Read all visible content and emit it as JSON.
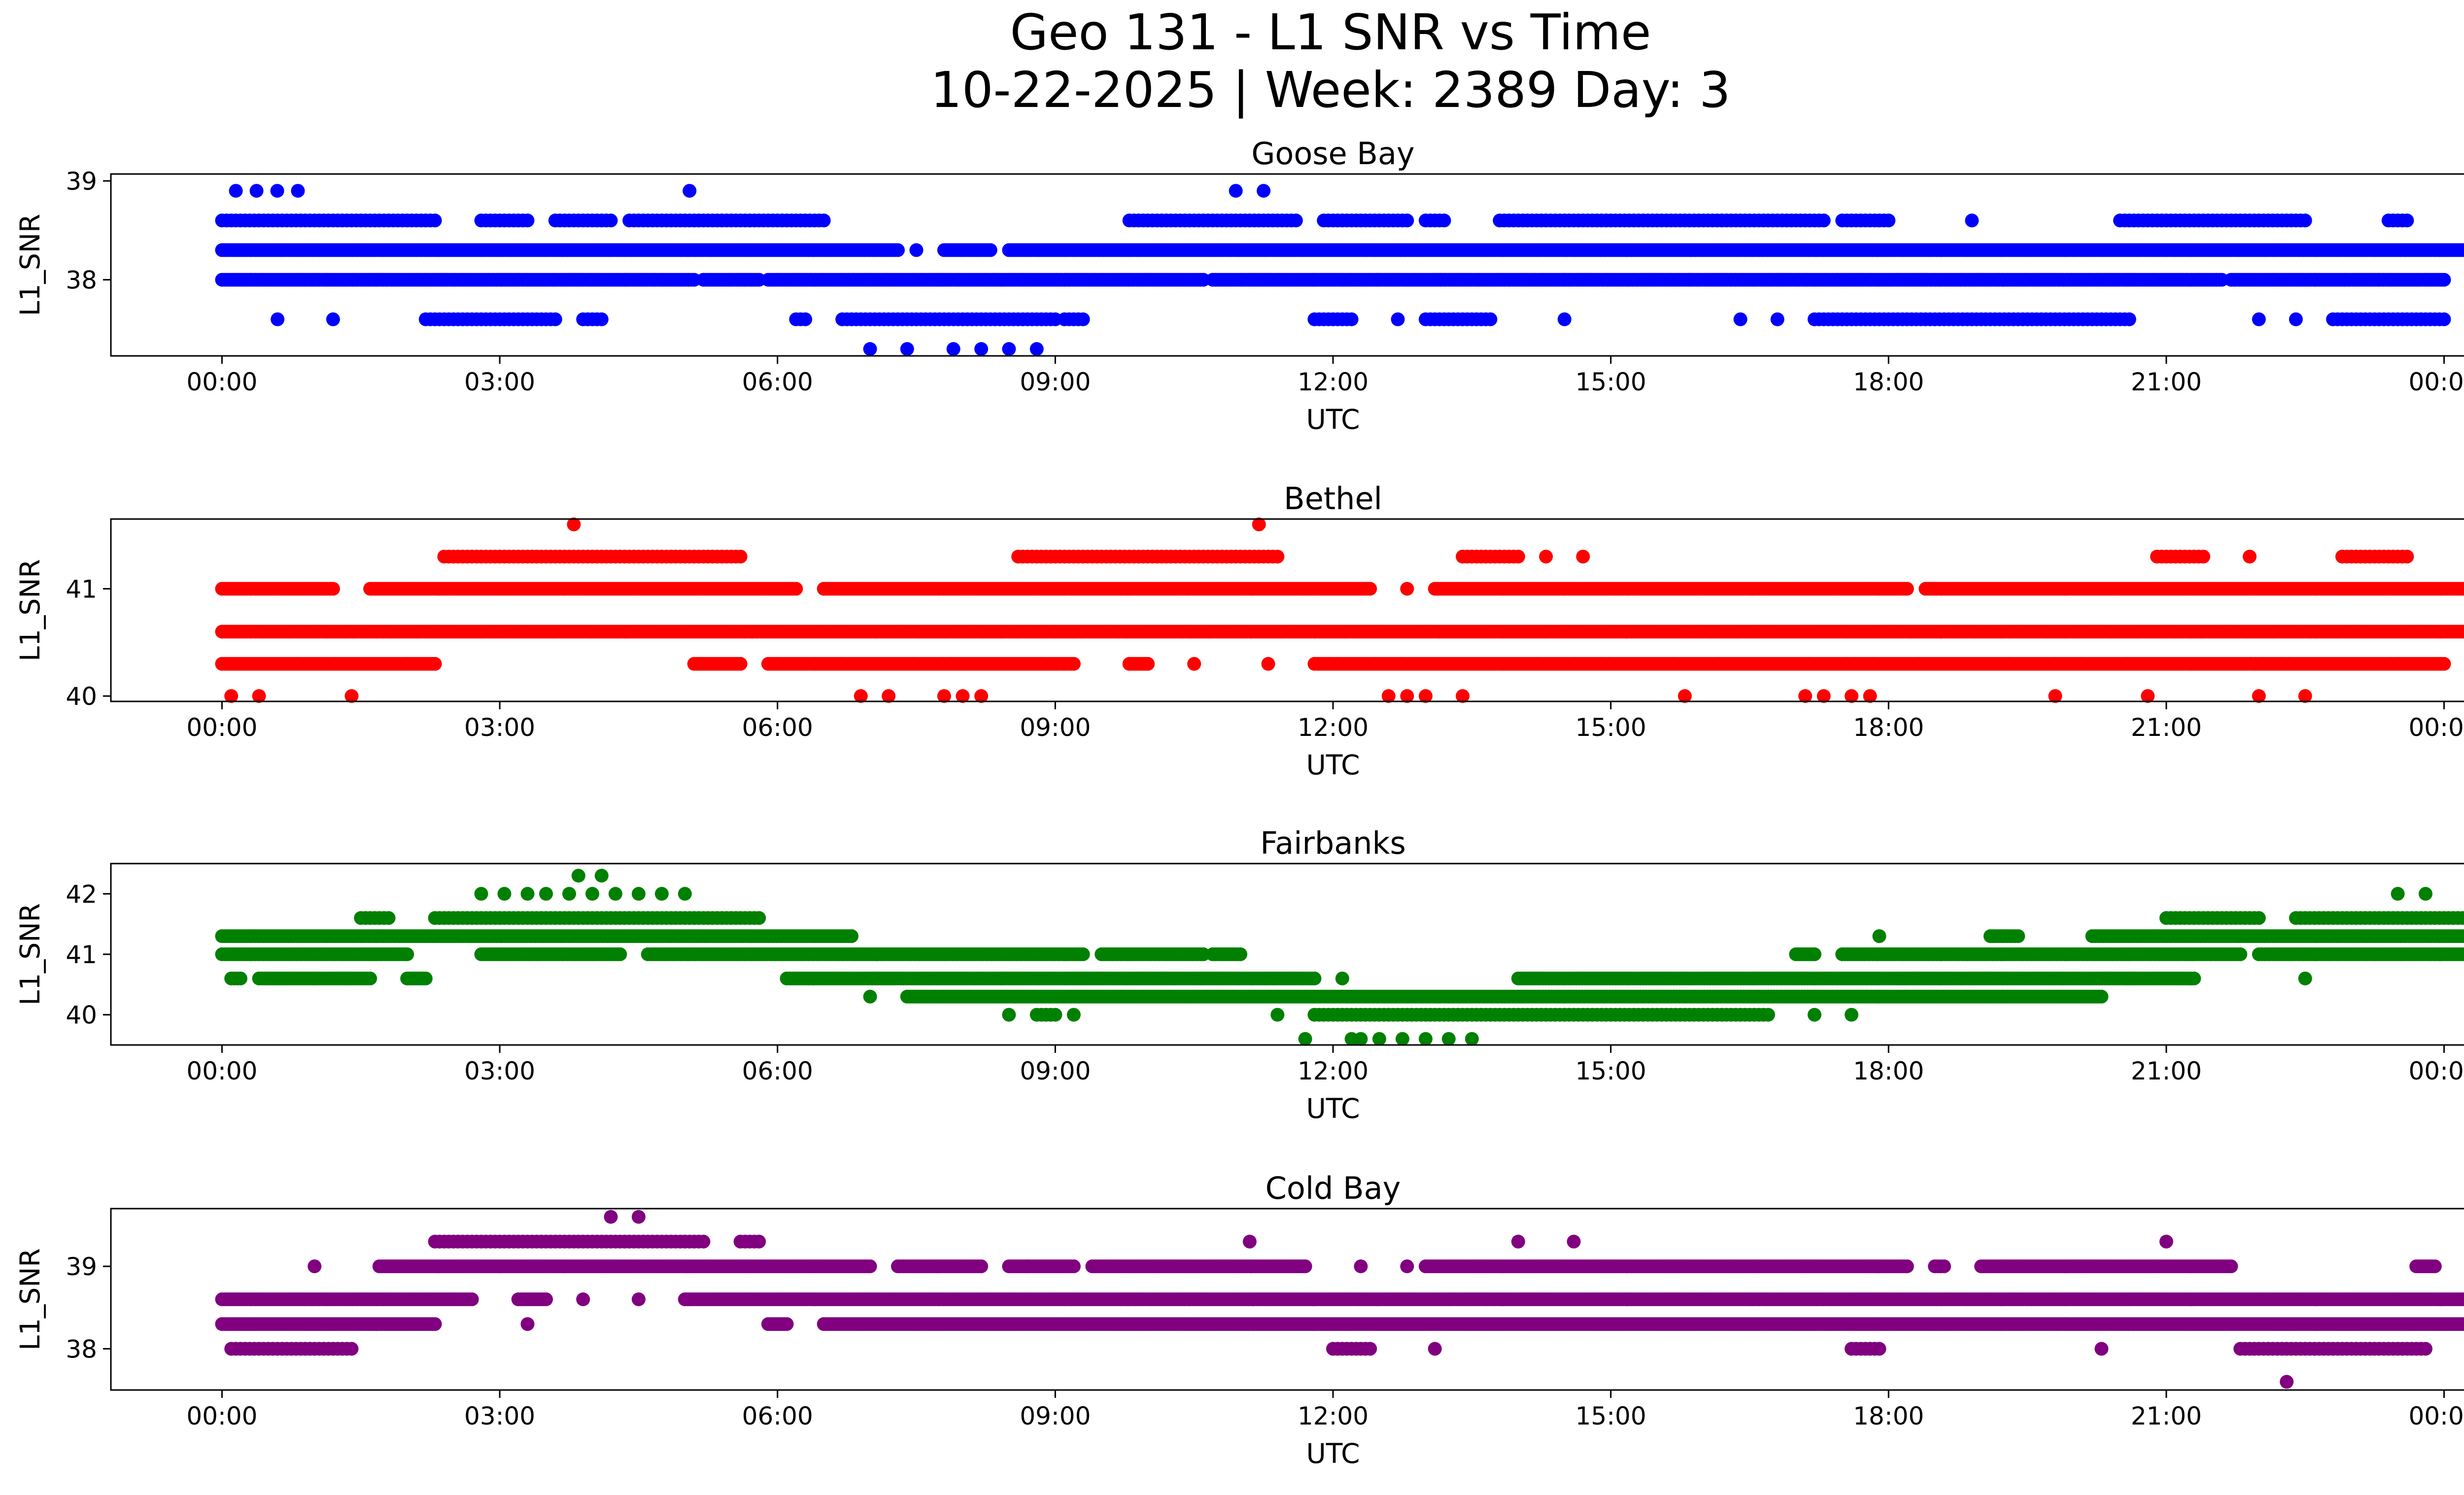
{
  "figure": {
    "title_line1": "Geo 131 - L1 SNR vs Time",
    "title_line2": "10-22-2025 | Week: 2389 Day: 3"
  },
  "chart_data": [
    {
      "type": "scatter",
      "title": "Goose Bay",
      "xlabel": "UTC",
      "ylabel": "L1_SNR",
      "color": "#0000ff",
      "xticks": [
        "00:00",
        "03:00",
        "06:00",
        "09:00",
        "12:00",
        "15:00",
        "18:00",
        "21:00",
        "00:00"
      ],
      "xlim_hours": [
        -1.2,
        25.2
      ],
      "yticks": [
        38,
        39
      ],
      "ylim": [
        37.23,
        39.07
      ],
      "levels": [
        {
          "y": 38.9,
          "bands": [
            [
              0.15,
              0.82
            ],
            [
              5.05,
              5.05
            ],
            [
              10.95,
              11.25
            ]
          ],
          "density": "sparse"
        },
        {
          "y": 38.6,
          "bands": [
            [
              0,
              2.3
            ],
            [
              2.8,
              3.3
            ],
            [
              3.6,
              4.2
            ],
            [
              4.4,
              6.5
            ],
            [
              9.8,
              11.6
            ],
            [
              11.9,
              12.8
            ],
            [
              13.0,
              13.2
            ],
            [
              13.8,
              17.3
            ],
            [
              17.5,
              18.0
            ],
            [
              18.9,
              18.9
            ],
            [
              20.5,
              22.5
            ],
            [
              23.4,
              23.6
            ]
          ],
          "density": "medium"
        },
        {
          "y": 38.3,
          "bands": [
            [
              0,
              7.3
            ],
            [
              7.5,
              7.5
            ],
            [
              7.8,
              8.3
            ],
            [
              8.5,
              25
            ]
          ],
          "density": "dense"
        },
        {
          "y": 38.0,
          "bands": [
            [
              0,
              5.1
            ],
            [
              5.2,
              5.8
            ],
            [
              5.9,
              10.6
            ],
            [
              10.7,
              21.6
            ],
            [
              21.7,
              24
            ]
          ],
          "density": "dense"
        },
        {
          "y": 37.6,
          "bands": [
            [
              0.6,
              0.6
            ],
            [
              1.2,
              1.2
            ],
            [
              2.2,
              3.6
            ],
            [
              3.9,
              4.1
            ],
            [
              6.2,
              6.3
            ],
            [
              6.7,
              9.0
            ],
            [
              9.1,
              9.3
            ],
            [
              11.8,
              12.2
            ],
            [
              12.7,
              12.7
            ],
            [
              13.0,
              13.7
            ],
            [
              14.5,
              14.5
            ],
            [
              16.4,
              16.4
            ],
            [
              16.8,
              16.8
            ],
            [
              17.2,
              20.6
            ],
            [
              22.0,
              22.0
            ],
            [
              22.4,
              22.4
            ],
            [
              22.8,
              24
            ]
          ],
          "density": "medium"
        },
        {
          "y": 37.3,
          "bands": [
            [
              7.0,
              7.0
            ],
            [
              7.4,
              7.4
            ],
            [
              7.9,
              8.2
            ],
            [
              8.5,
              8.8
            ]
          ],
          "density": "sparse"
        }
      ]
    },
    {
      "type": "scatter",
      "title": "Bethel",
      "xlabel": "UTC",
      "ylabel": "L1_SNR",
      "color": "#ff0000",
      "xticks": [
        "00:00",
        "03:00",
        "06:00",
        "09:00",
        "12:00",
        "15:00",
        "18:00",
        "21:00",
        "00:00"
      ],
      "xlim_hours": [
        -1.2,
        25.2
      ],
      "yticks": [
        40,
        41
      ],
      "ylim": [
        39.95,
        41.65
      ],
      "levels": [
        {
          "y": 41.6,
          "bands": [
            [
              3.8,
              3.8
            ],
            [
              11.2,
              11.2
            ]
          ],
          "density": "sparse"
        },
        {
          "y": 41.3,
          "bands": [
            [
              2.4,
              5.6
            ],
            [
              8.6,
              11.4
            ],
            [
              13.4,
              14.0
            ],
            [
              14.3,
              14.3
            ],
            [
              14.7,
              14.7
            ],
            [
              20.9,
              21.4
            ],
            [
              21.9,
              21.9
            ],
            [
              22.9,
              23.6
            ]
          ],
          "density": "medium"
        },
        {
          "y": 41.0,
          "bands": [
            [
              0,
              1.2
            ],
            [
              1.6,
              6.2
            ],
            [
              6.5,
              12.4
            ],
            [
              12.8,
              12.8
            ],
            [
              13.1,
              18.2
            ],
            [
              18.4,
              25
            ]
          ],
          "density": "dense"
        },
        {
          "y": 40.6,
          "bands": [
            [
              0,
              25
            ]
          ],
          "density": "dense"
        },
        {
          "y": 40.3,
          "bands": [
            [
              0,
              2.3
            ],
            [
              5.1,
              5.6
            ],
            [
              5.9,
              9.2
            ],
            [
              9.8,
              10.0
            ],
            [
              10.5,
              10.5
            ],
            [
              11.3,
              11.3
            ],
            [
              11.8,
              24.0
            ]
          ],
          "density": "dense"
        },
        {
          "y": 40.0,
          "bands": [
            [
              0.1,
              0.1
            ],
            [
              0.4,
              0.4
            ],
            [
              1.4,
              1.4
            ],
            [
              6.9,
              7.2
            ],
            [
              7.8,
              8.0
            ],
            [
              8.2,
              8.2
            ],
            [
              12.6,
              13.0
            ],
            [
              13.4,
              13.4
            ],
            [
              15.8,
              15.8
            ],
            [
              17.1,
              17.3
            ],
            [
              17.6,
              17.8
            ],
            [
              19.8,
              19.8
            ],
            [
              20.8,
              20.8
            ],
            [
              22.0,
              22.0
            ],
            [
              22.5,
              22.5
            ]
          ],
          "density": "sparse"
        }
      ]
    },
    {
      "type": "scatter",
      "title": "Fairbanks",
      "xlabel": "UTC",
      "ylabel": "L1_SNR",
      "color": "#008000",
      "xticks": [
        "00:00",
        "03:00",
        "06:00",
        "09:00",
        "12:00",
        "15:00",
        "18:00",
        "21:00",
        "00:00"
      ],
      "xlim_hours": [
        -1.2,
        25.2
      ],
      "yticks": [
        40,
        41,
        42
      ],
      "ylim": [
        39.5,
        42.5
      ],
      "levels": [
        {
          "y": 42.3,
          "bands": [
            [
              3.85,
              4.1
            ]
          ],
          "density": "sparse"
        },
        {
          "y": 42.0,
          "bands": [
            [
              2.8,
              3.3
            ],
            [
              3.5,
              5.0
            ],
            [
              23.5,
              23.5
            ],
            [
              23.8,
              23.8
            ]
          ],
          "density": "sparse"
        },
        {
          "y": 41.6,
          "bands": [
            [
              1.5,
              1.8
            ],
            [
              2.3,
              5.8
            ],
            [
              21.0,
              22.0
            ],
            [
              22.4,
              25
            ]
          ],
          "density": "medium"
        },
        {
          "y": 41.3,
          "bands": [
            [
              0,
              6.8
            ],
            [
              17.9,
              17.9
            ],
            [
              19.1,
              19.4
            ],
            [
              20.2,
              25
            ]
          ],
          "density": "dense"
        },
        {
          "y": 41.0,
          "bands": [
            [
              0,
              2.0
            ],
            [
              2.8,
              4.3
            ],
            [
              4.6,
              9.3
            ],
            [
              9.5,
              10.6
            ],
            [
              10.7,
              11.0
            ],
            [
              17.0,
              17.2
            ],
            [
              17.5,
              21.8
            ],
            [
              22.0,
              25
            ]
          ],
          "density": "dense"
        },
        {
          "y": 40.6,
          "bands": [
            [
              0.1,
              0.2
            ],
            [
              0.4,
              1.6
            ],
            [
              2.0,
              2.2
            ],
            [
              6.1,
              11.8
            ],
            [
              12.1,
              12.1
            ],
            [
              14.0,
              21.3
            ],
            [
              22.5,
              22.5
            ]
          ],
          "density": "dense"
        },
        {
          "y": 40.3,
          "bands": [
            [
              7.0,
              7.0
            ],
            [
              7.4,
              20.3
            ]
          ],
          "density": "dense"
        },
        {
          "y": 40.0,
          "bands": [
            [
              8.5,
              8.5
            ],
            [
              8.8,
              9.0
            ],
            [
              9.2,
              9.2
            ],
            [
              11.4,
              11.4
            ],
            [
              11.8,
              16.7
            ],
            [
              17.2,
              17.2
            ],
            [
              17.6,
              17.6
            ]
          ],
          "density": "medium"
        },
        {
          "y": 39.6,
          "bands": [
            [
              11.7,
              11.7
            ],
            [
              12.2,
              12.3
            ],
            [
              12.5,
              13.5
            ]
          ],
          "density": "sparse"
        }
      ]
    },
    {
      "type": "scatter",
      "title": "Cold Bay",
      "xlabel": "UTC",
      "ylabel": "L1_SNR",
      "color": "#800080",
      "xticks": [
        "00:00",
        "03:00",
        "06:00",
        "09:00",
        "12:00",
        "15:00",
        "18:00",
        "21:00",
        "00:00"
      ],
      "xlim_hours": [
        -1.2,
        25.2
      ],
      "yticks": [
        38,
        39
      ],
      "ylim": [
        37.5,
        39.7
      ],
      "levels": [
        {
          "y": 39.6,
          "bands": [
            [
              4.2,
              4.2
            ],
            [
              4.5,
              4.5
            ]
          ],
          "density": "sparse"
        },
        {
          "y": 39.3,
          "bands": [
            [
              2.3,
              5.2
            ],
            [
              5.6,
              5.8
            ],
            [
              11.1,
              11.1
            ],
            [
              14.0,
              14.0
            ],
            [
              14.6,
              14.6
            ],
            [
              21.0,
              21.0
            ]
          ],
          "density": "medium"
        },
        {
          "y": 39.0,
          "bands": [
            [
              1.0,
              1.0
            ],
            [
              1.7,
              7.0
            ],
            [
              7.3,
              8.2
            ],
            [
              8.5,
              8.7
            ],
            [
              8.7,
              9.2
            ],
            [
              9.4,
              11.7
            ],
            [
              12.3,
              12.3
            ],
            [
              12.8,
              12.8
            ],
            [
              13.0,
              18.2
            ],
            [
              18.5,
              18.6
            ],
            [
              19.0,
              21.7
            ],
            [
              23.7,
              23.9
            ]
          ],
          "density": "dense"
        },
        {
          "y": 38.6,
          "bands": [
            [
              0,
              2.7
            ],
            [
              3.2,
              3.5
            ],
            [
              3.9,
              3.9
            ],
            [
              4.5,
              4.5
            ],
            [
              5.0,
              25
            ]
          ],
          "density": "dense"
        },
        {
          "y": 38.3,
          "bands": [
            [
              0,
              2.3
            ],
            [
              3.3,
              3.3
            ],
            [
              5.9,
              6.1
            ],
            [
              6.5,
              25
            ]
          ],
          "density": "dense"
        },
        {
          "y": 38.0,
          "bands": [
            [
              0.1,
              1.4
            ],
            [
              12.0,
              12.4
            ],
            [
              13.1,
              13.1
            ],
            [
              17.6,
              17.9
            ],
            [
              20.3,
              20.3
            ],
            [
              21.8,
              23.8
            ]
          ],
          "density": "medium"
        },
        {
          "y": 37.6,
          "bands": [
            [
              22.3,
              22.3
            ]
          ],
          "density": "sparse"
        }
      ]
    }
  ]
}
